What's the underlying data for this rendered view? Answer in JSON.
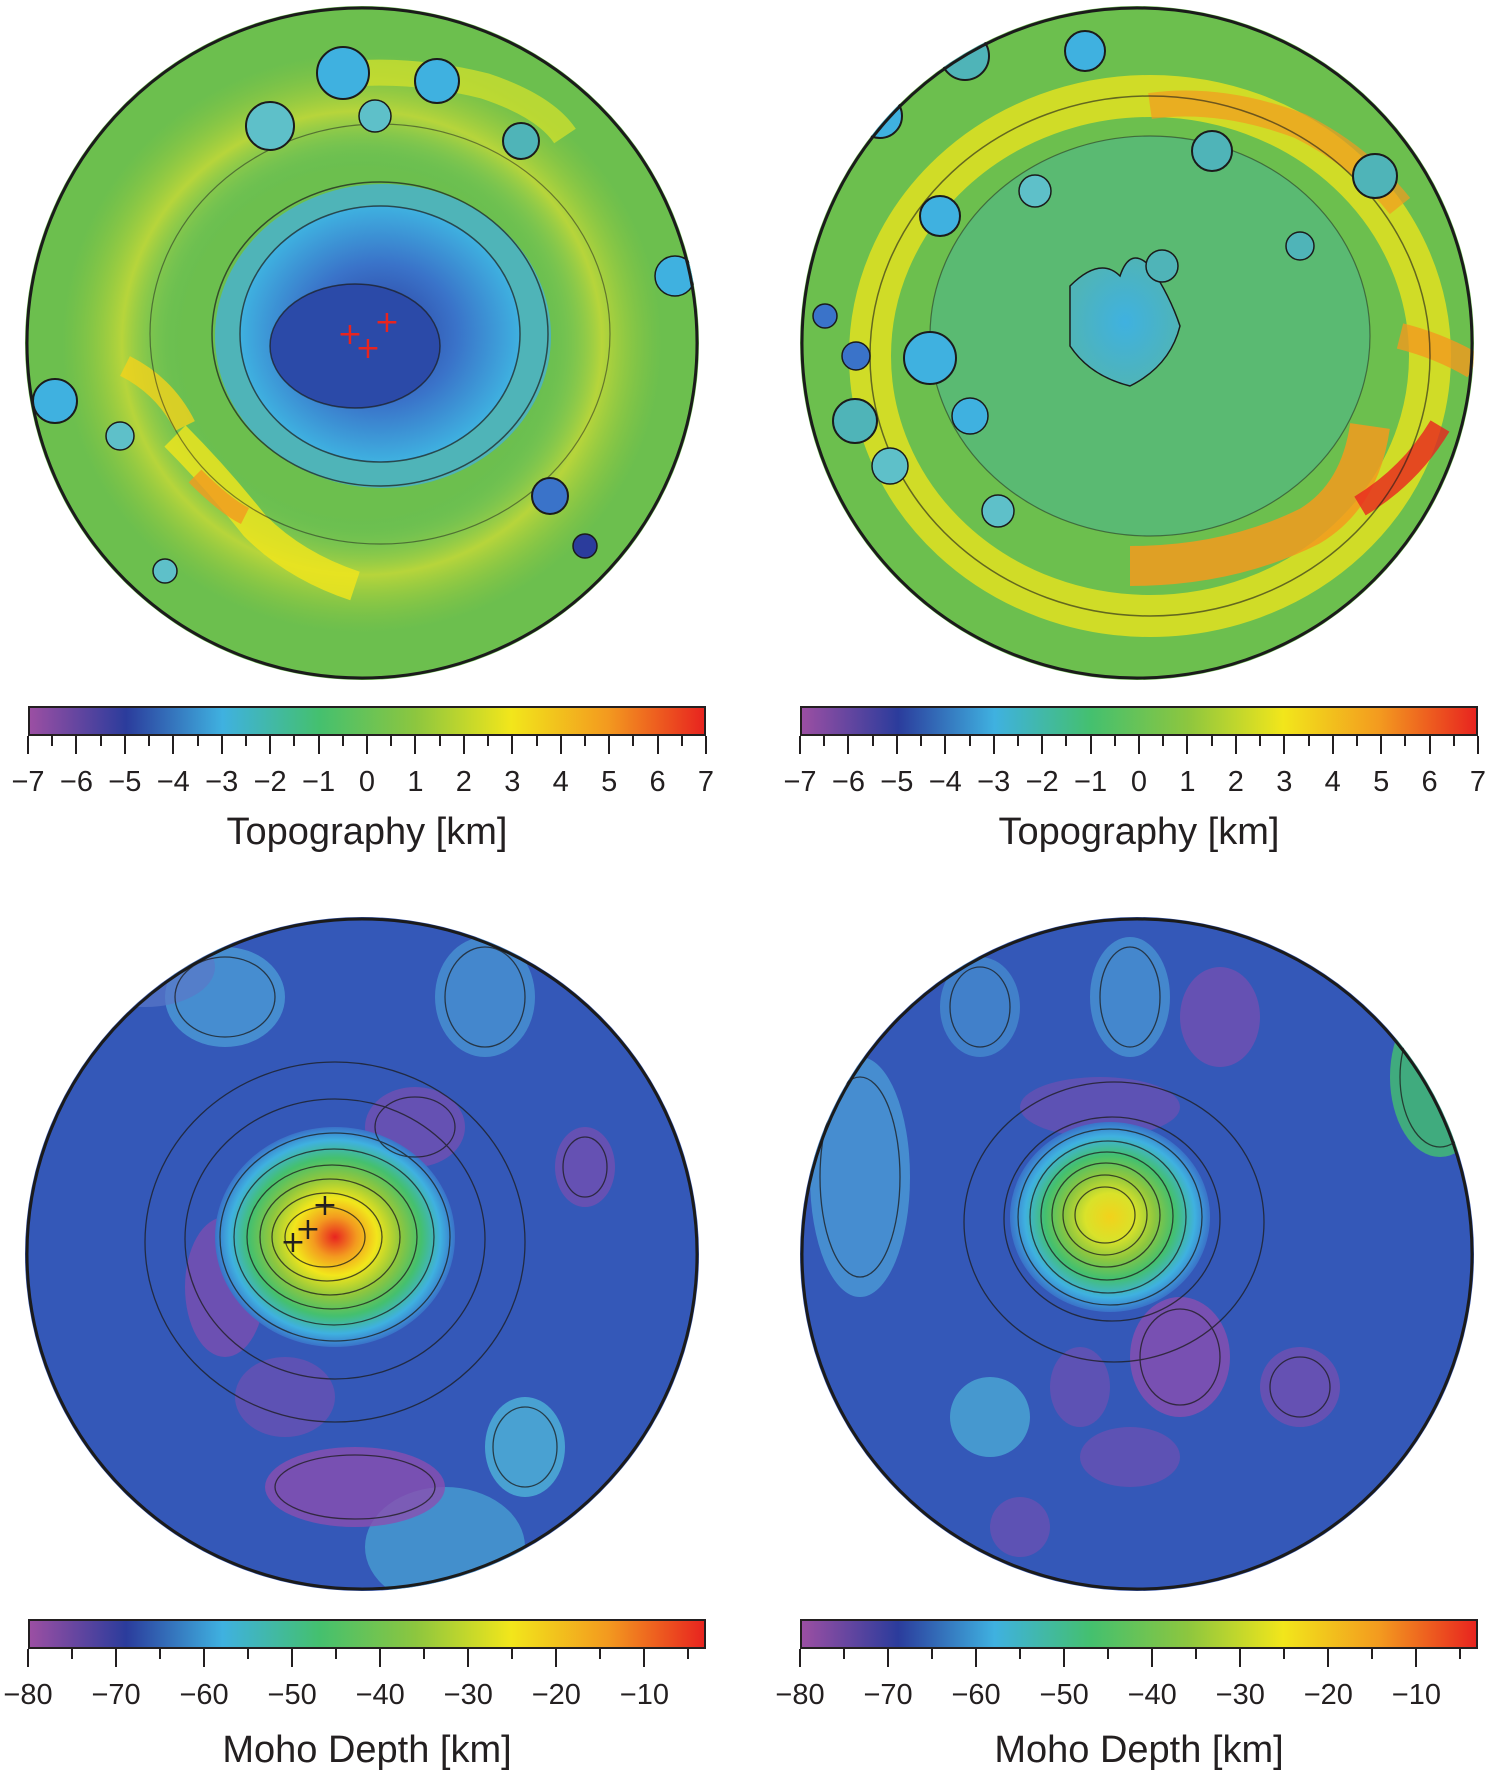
{
  "panels": [
    {
      "id": "topo-left",
      "map_kind": "topography",
      "colorbar": {
        "label": "Topography [km]",
        "ticks": [
          "−7",
          "−6",
          "−5",
          "−4",
          "−3",
          "−2",
          "−1",
          "0",
          "1",
          "2",
          "3",
          "4",
          "5",
          "6",
          "7"
        ],
        "range": [
          -7,
          7
        ],
        "colors": [
          "#9b4fa3",
          "#2b3c9c",
          "#3fb1e0",
          "#44c06f",
          "#8cc63f",
          "#f2e61b",
          "#f39a1f",
          "#e8241f"
        ]
      }
    },
    {
      "id": "topo-right",
      "map_kind": "topography",
      "colorbar": {
        "label": "Topography [km]",
        "ticks": [
          "−7",
          "−6",
          "−5",
          "−4",
          "−3",
          "−2",
          "−1",
          "0",
          "1",
          "2",
          "3",
          "4",
          "5",
          "6",
          "7"
        ],
        "range": [
          -7,
          7
        ],
        "colors": [
          "#9b4fa3",
          "#2b3c9c",
          "#3fb1e0",
          "#44c06f",
          "#8cc63f",
          "#f2e61b",
          "#f39a1f",
          "#e8241f"
        ]
      }
    },
    {
      "id": "moho-left",
      "map_kind": "moho",
      "colorbar": {
        "label": "Moho Depth [km]",
        "ticks": [
          "−80",
          "−70",
          "−60",
          "−50",
          "−40",
          "−30",
          "−20",
          "−10"
        ],
        "range": [
          -80,
          -3
        ],
        "colors": [
          "#9b4fa3",
          "#2b3c9c",
          "#3fb1e0",
          "#44c06f",
          "#8cc63f",
          "#f2e61b",
          "#f39a1f",
          "#e8241f"
        ]
      }
    },
    {
      "id": "moho-right",
      "map_kind": "moho",
      "colorbar": {
        "label": "Moho Depth [km]",
        "ticks": [
          "−80",
          "−70",
          "−60",
          "−50",
          "−40",
          "−30",
          "−20",
          "−10"
        ],
        "range": [
          -80,
          -3
        ],
        "colors": [
          "#9b4fa3",
          "#2b3c9c",
          "#3fb1e0",
          "#44c06f",
          "#8cc63f",
          "#f2e61b",
          "#f39a1f",
          "#e8241f"
        ]
      }
    }
  ],
  "markers": {
    "topo-left": {
      "symbol": "+",
      "color": "#e8241f",
      "count": 3
    },
    "moho-left": {
      "symbol": "+",
      "color": "#231f20",
      "count": 3
    }
  }
}
